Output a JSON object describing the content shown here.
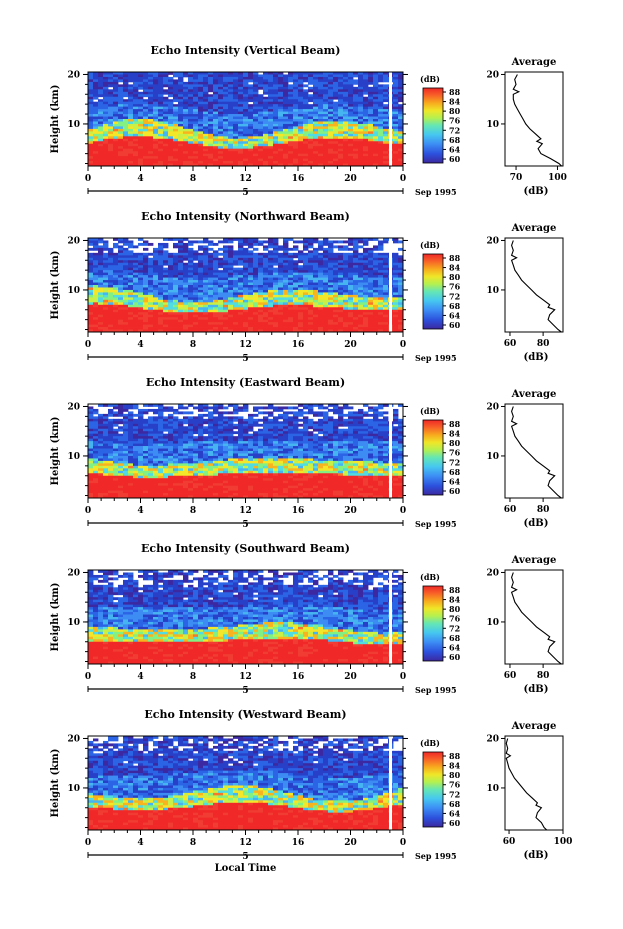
{
  "chart_data": [
    {
      "type": "heatmap",
      "title": "Echo Intensity (Vertical Beam)",
      "ylabel": "Height (km)",
      "yticks": [
        "10",
        "20"
      ],
      "ylim": [
        1.5,
        20.5
      ],
      "xticks": [
        "0",
        "4",
        "8",
        "12",
        "16",
        "20",
        "0"
      ],
      "xlim": [
        0,
        24
      ],
      "date_mid": "5",
      "date_label": "Sep 1995",
      "colorbar": {
        "label": "(dB)",
        "ticks": [
          "88",
          "84",
          "80",
          "76",
          "72",
          "68",
          "64",
          "60"
        ],
        "range": [
          60,
          90
        ]
      },
      "average": {
        "title": "Average",
        "xlabel": "(dB)",
        "xticks": [
          "70",
          "100"
        ],
        "xlim": [
          62,
          104
        ],
        "profile_height": [
          1.5,
          2,
          3,
          4,
          5,
          6,
          6.5,
          7,
          8,
          9,
          10,
          11,
          12,
          13,
          14,
          15,
          16,
          16.5,
          17,
          18,
          19,
          20
        ],
        "profile_db": [
          103,
          101,
          95,
          88,
          86,
          89,
          85,
          88,
          84,
          80,
          77,
          75,
          73,
          71,
          69,
          68,
          68,
          72,
          68,
          70,
          69,
          71
        ]
      }
    },
    {
      "type": "heatmap",
      "title": "Echo Intensity (Northward Beam)",
      "ylabel": "Height (km)",
      "yticks": [
        "10",
        "20"
      ],
      "ylim": [
        1.5,
        20.5
      ],
      "xticks": [
        "0",
        "4",
        "8",
        "12",
        "16",
        "20",
        "0"
      ],
      "xlim": [
        0,
        24
      ],
      "date_mid": "5",
      "date_label": "Sep 1995",
      "colorbar": {
        "label": "(dB)",
        "ticks": [
          "88",
          "84",
          "80",
          "76",
          "72",
          "68",
          "64",
          "60"
        ],
        "range": [
          60,
          90
        ]
      },
      "average": {
        "title": "Average",
        "xlabel": "(dB)",
        "xticks": [
          "60",
          "80"
        ],
        "xlim": [
          57,
          92
        ],
        "profile_height": [
          1.5,
          2,
          3,
          4,
          5,
          6,
          6.5,
          7,
          8,
          9,
          10,
          11,
          12,
          13,
          14,
          15,
          16,
          16.5,
          17,
          18,
          19,
          20
        ],
        "profile_db": [
          91,
          89,
          86,
          83,
          84,
          87,
          83,
          84,
          80,
          76,
          73,
          70,
          67,
          65,
          63,
          62,
          61,
          64,
          61,
          62,
          61,
          62
        ]
      }
    },
    {
      "type": "heatmap",
      "title": "Echo Intensity (Eastward Beam)",
      "ylabel": "Height (km)",
      "yticks": [
        "10",
        "20"
      ],
      "ylim": [
        1.5,
        20.5
      ],
      "xticks": [
        "0",
        "4",
        "8",
        "12",
        "16",
        "20",
        "0"
      ],
      "xlim": [
        0,
        24
      ],
      "date_mid": "5",
      "date_label": "Sep 1995",
      "colorbar": {
        "label": "(dB)",
        "ticks": [
          "88",
          "84",
          "80",
          "76",
          "72",
          "68",
          "64",
          "60"
        ],
        "range": [
          60,
          90
        ]
      },
      "average": {
        "title": "Average",
        "xlabel": "(dB)",
        "xticks": [
          "60",
          "80"
        ],
        "xlim": [
          57,
          92
        ],
        "profile_height": [
          1.5,
          2,
          3,
          4,
          5,
          6,
          6.5,
          7,
          8,
          9,
          10,
          11,
          12,
          13,
          14,
          15,
          16,
          16.5,
          17,
          18,
          19,
          20
        ],
        "profile_db": [
          91,
          89,
          86,
          83,
          84,
          87,
          83,
          84,
          80,
          76,
          73,
          70,
          67,
          65,
          63,
          62,
          61,
          64,
          61,
          62,
          61,
          62
        ]
      }
    },
    {
      "type": "heatmap",
      "title": "Echo Intensity (Southward Beam)",
      "ylabel": "Height (km)",
      "yticks": [
        "10",
        "20"
      ],
      "ylim": [
        1.5,
        20.5
      ],
      "xticks": [
        "0",
        "4",
        "8",
        "12",
        "16",
        "20",
        "0"
      ],
      "xlim": [
        0,
        24
      ],
      "date_mid": "5",
      "date_label": "Sep 1995",
      "colorbar": {
        "label": "(dB)",
        "ticks": [
          "88",
          "84",
          "80",
          "76",
          "72",
          "68",
          "64",
          "60"
        ],
        "range": [
          60,
          90
        ]
      },
      "average": {
        "title": "Average",
        "xlabel": "(dB)",
        "xticks": [
          "60",
          "80"
        ],
        "xlim": [
          57,
          92
        ],
        "profile_height": [
          1.5,
          2,
          3,
          4,
          5,
          6,
          6.5,
          7,
          8,
          9,
          10,
          11,
          12,
          13,
          14,
          15,
          16,
          16.5,
          17,
          18,
          19,
          20
        ],
        "profile_db": [
          91,
          89,
          86,
          83,
          84,
          87,
          83,
          84,
          80,
          76,
          73,
          70,
          67,
          65,
          63,
          62,
          61,
          64,
          61,
          62,
          61,
          62
        ]
      }
    },
    {
      "type": "heatmap",
      "title": "Echo Intensity (Westward Beam)",
      "ylabel": "Height (km)",
      "yticks": [
        "10",
        "20"
      ],
      "ylim": [
        1.5,
        20.5
      ],
      "xticks": [
        "0",
        "4",
        "8",
        "12",
        "16",
        "20",
        "0"
      ],
      "xlim": [
        0,
        24
      ],
      "date_mid": "5",
      "date_label": "Sep 1995",
      "xlabel": "Local Time",
      "colorbar": {
        "label": "(dB)",
        "ticks": [
          "88",
          "84",
          "80",
          "76",
          "72",
          "68",
          "64",
          "60"
        ],
        "range": [
          60,
          90
        ]
      },
      "average": {
        "title": "Average",
        "xlabel": "(dB)",
        "xticks": [
          "60",
          "100"
        ],
        "xlim": [
          57,
          100
        ],
        "profile_height": [
          1.5,
          2,
          3,
          4,
          5,
          6,
          6.5,
          7,
          8,
          9,
          10,
          11,
          12,
          13,
          14,
          15,
          16,
          16.5,
          17,
          18,
          19,
          20
        ],
        "profile_db": [
          88,
          86,
          84,
          80,
          81,
          84,
          80,
          81,
          77,
          73,
          70,
          67,
          64,
          62,
          60,
          59,
          58,
          61,
          58,
          59,
          58,
          59
        ]
      }
    }
  ],
  "colors": {
    "colormap": [
      "#3c28a0",
      "#2840c8",
      "#2c64e6",
      "#3c8cf4",
      "#46b4f0",
      "#50dce0",
      "#82f082",
      "#c8f046",
      "#f4e628",
      "#f8b41e",
      "#f87828",
      "#f03c32",
      "#f02828"
    ],
    "profile_line": "#000000",
    "axis": "#000000"
  }
}
